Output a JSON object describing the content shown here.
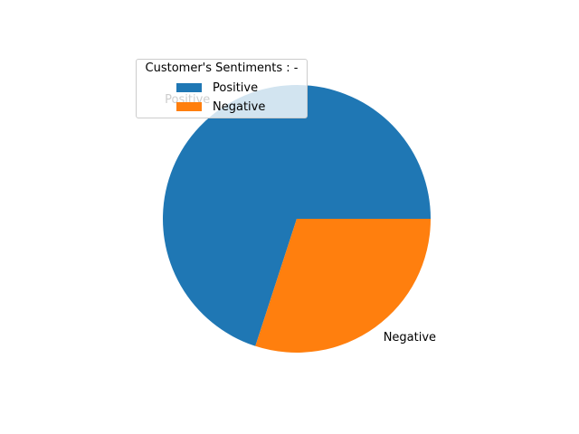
{
  "chart_data": {
    "type": "pie",
    "legend_title": "Customer's Sentiments : -",
    "legend_position": "upper-left",
    "categories": [
      "Positive",
      "Negative"
    ],
    "values": [
      70,
      30
    ],
    "colors": [
      "#1f77b4",
      "#ff7f0e"
    ],
    "start_angle_deg": 0,
    "direction": "counterclockwise"
  }
}
